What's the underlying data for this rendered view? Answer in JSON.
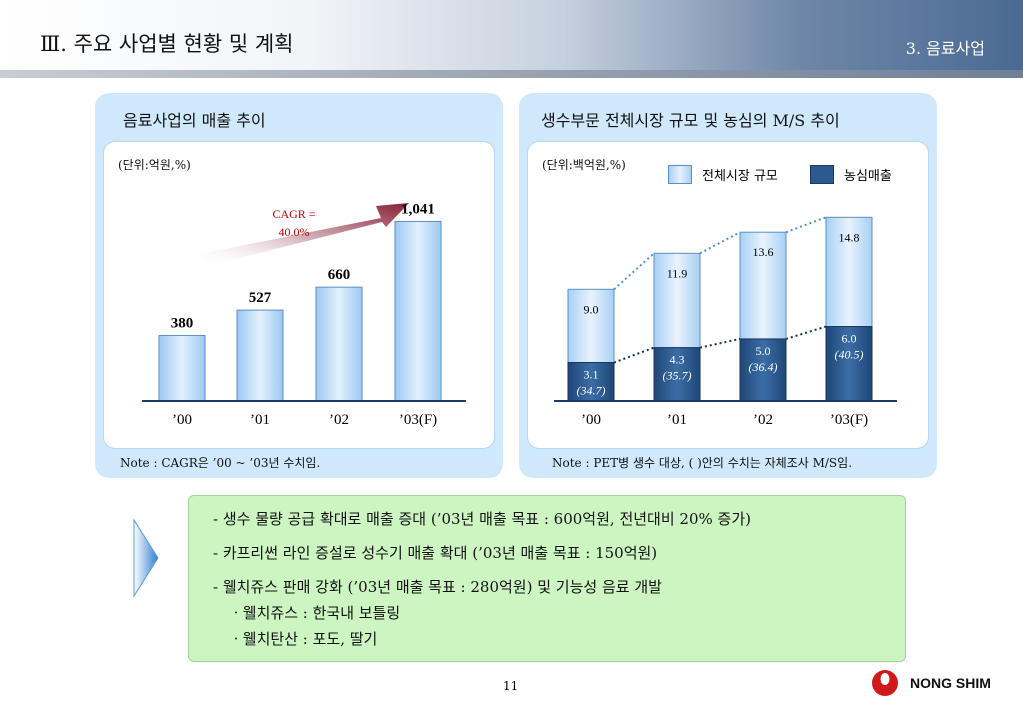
{
  "header": {
    "title": "Ⅲ. 주요 사업별 현황 및 계획",
    "section": "3. 음료사업"
  },
  "left_panel": {
    "title": "음료사업의 매출 추이",
    "unit": "(단위:억원,%)",
    "cagr_line1": "CAGR =",
    "cagr_line2": "40.0%",
    "note": "Note : CAGR은 ’00 ~ ’03년 수치임."
  },
  "right_panel": {
    "title": "생수부문 전체시장 규모 및 농심의 M/S 추이",
    "unit": "(단위:백억원,%)",
    "legend_total": "전체시장 규모",
    "legend_ns": "농심매출",
    "note": "Note : PET병 생수 대상, ( )안의 수치는 자체조사 M/S임."
  },
  "chart_data": [
    {
      "type": "bar",
      "categories": [
        "’00",
        "’01",
        "’02",
        "’03(F)"
      ],
      "values": [
        380,
        527,
        660,
        1041
      ],
      "value_labels": [
        "380",
        "527",
        "660",
        "1,041"
      ],
      "ylim": [
        0,
        1200
      ]
    },
    {
      "type": "bar",
      "categories": [
        "’00",
        "’01",
        "’02",
        "’03(F)"
      ],
      "series": [
        {
          "name": "전체시장 규모",
          "values": [
            9.0,
            11.9,
            13.6,
            14.8
          ],
          "labels": [
            "9.0",
            "11.9",
            "13.6",
            "14.8"
          ]
        },
        {
          "name": "농심매출",
          "values": [
            3.1,
            4.3,
            5.0,
            6.0
          ],
          "labels": [
            "3.1",
            "4.3",
            "5.0",
            "6.0"
          ],
          "share_labels": [
            "(34.7)",
            "(35.7)",
            "(36.4)",
            "(40.5)"
          ]
        }
      ],
      "ylim": [
        0,
        17
      ]
    }
  ],
  "plan": {
    "bullets": [
      "- 생수 물량 공급 확대로 매출 증대 (’03년 매출 목표 : 600억원, 전년대비 20% 증가)",
      "- 카프리썬 라인 증설로 성수기 매출 확대 (’03년 매출 목표 : 150억원)",
      "- 웰치쥬스 판매 강화 (’03년 매출 목표 : 280억원) 및 기능성 음료 개발"
    ],
    "subs": [
      "ㆍ웰치쥬스 : 한국내 보틀링",
      "ㆍ웰치탄산 : 포도, 딸기"
    ]
  },
  "footer": {
    "page": "11",
    "logo": "NONG SHIM"
  }
}
